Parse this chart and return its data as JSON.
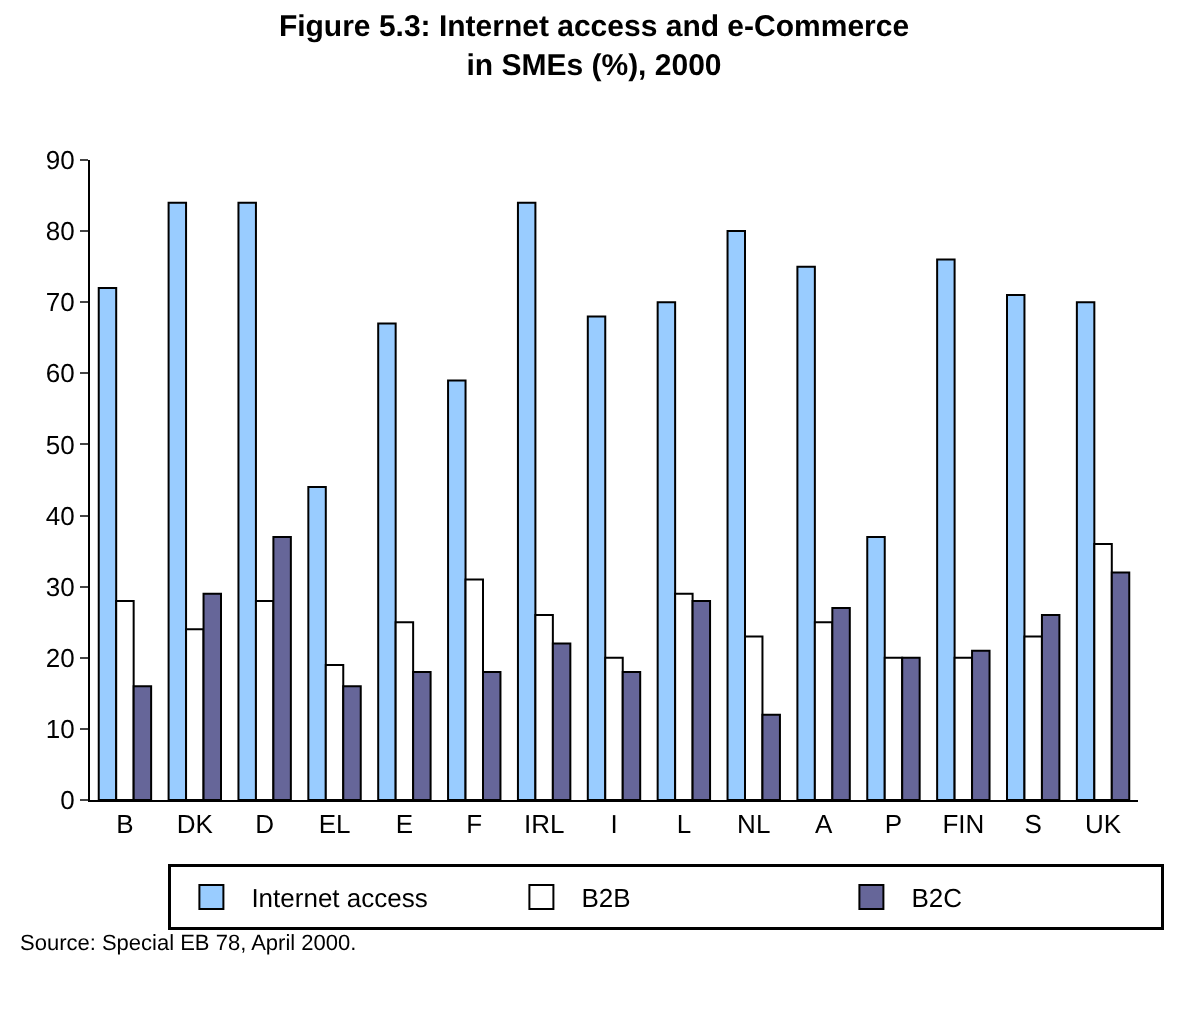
{
  "chart_data": {
    "type": "bar",
    "title": "Figure 5.3: Internet access and e-Commerce\nin SMEs (%), 2000",
    "categories": [
      "B",
      "DK",
      "D",
      "EL",
      "E",
      "F",
      "IRL",
      "I",
      "L",
      "NL",
      "A",
      "P",
      "FIN",
      "S",
      "UK"
    ],
    "series": [
      {
        "name": "Internet access",
        "color": "#99ccff",
        "values": [
          72,
          84,
          84,
          44,
          67,
          59,
          84,
          68,
          70,
          80,
          75,
          37,
          76,
          71,
          70
        ]
      },
      {
        "name": "B2B",
        "color": "#ffffff",
        "values": [
          28,
          24,
          28,
          19,
          25,
          31,
          26,
          20,
          29,
          23,
          25,
          20,
          20,
          23,
          36
        ]
      },
      {
        "name": "B2C",
        "color": "#666699",
        "values": [
          16,
          29,
          37,
          16,
          18,
          18,
          22,
          18,
          28,
          12,
          27,
          20,
          21,
          26,
          32
        ]
      }
    ],
    "ylim": [
      0,
      90
    ],
    "yticks": [
      0,
      10,
      20,
      30,
      40,
      50,
      60,
      70,
      80,
      90
    ],
    "legend": "bottom",
    "annotations": [
      "Source: Special EB 78, April 2000."
    ]
  }
}
